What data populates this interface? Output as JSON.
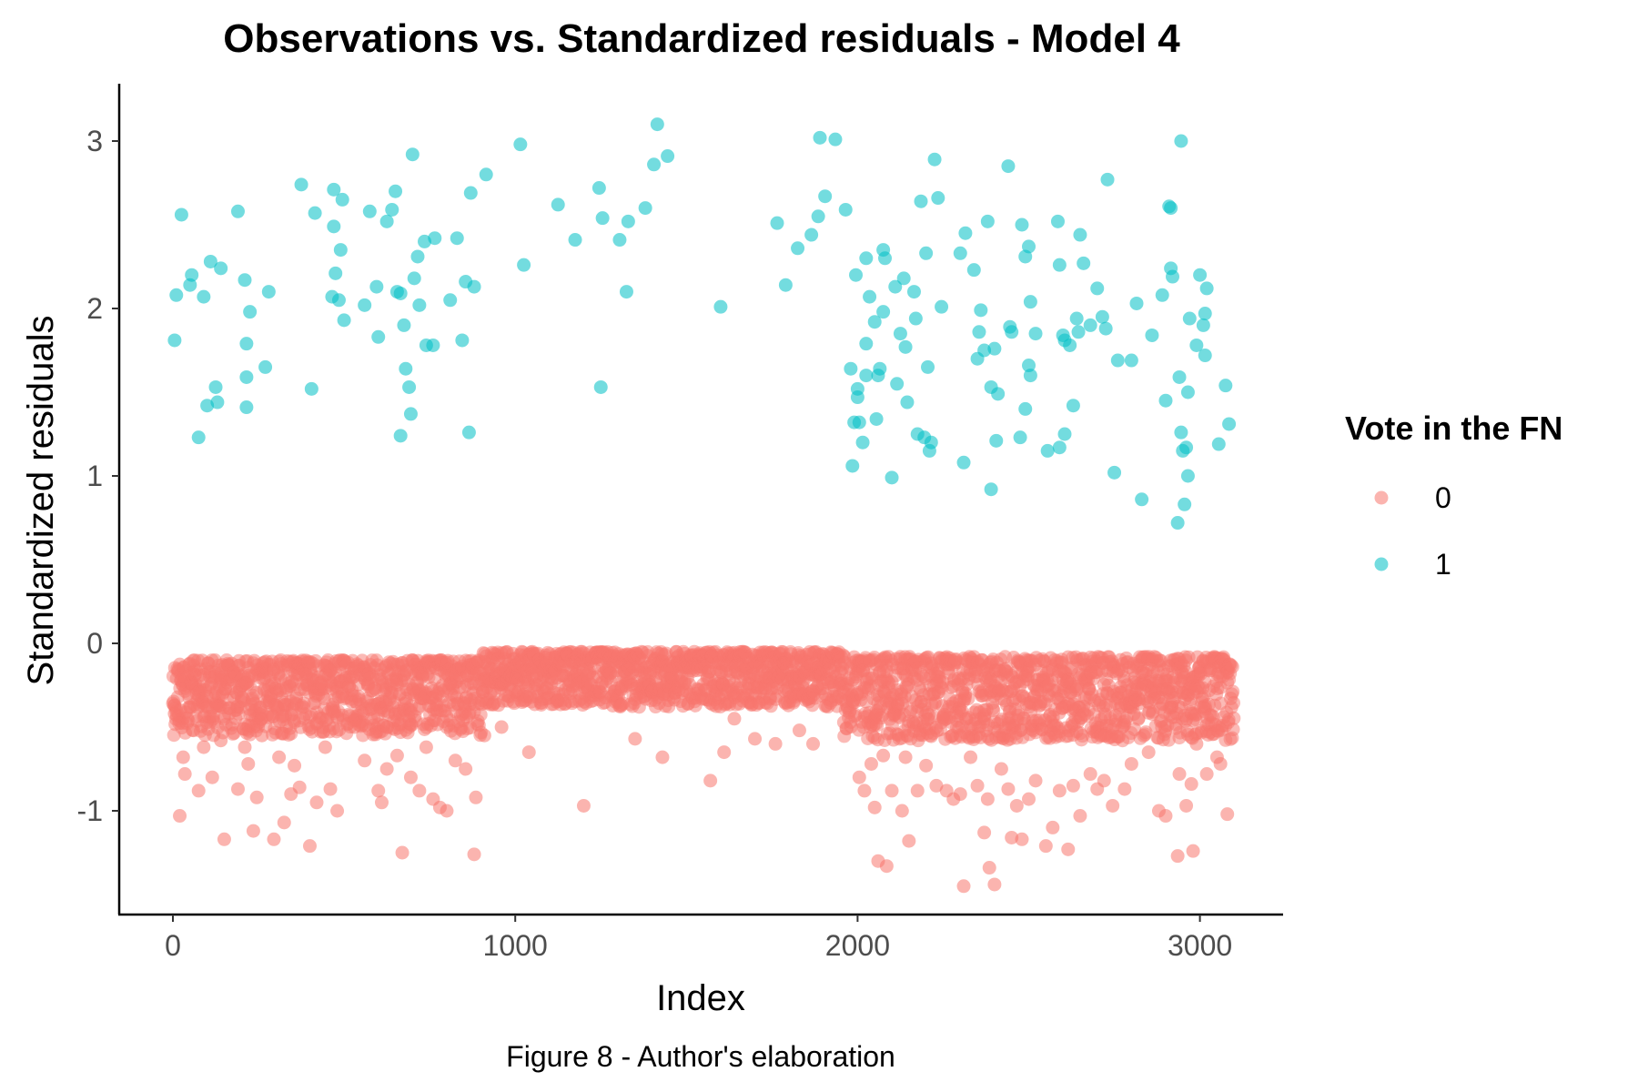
{
  "chart_data": {
    "type": "scatter",
    "title": "Observations vs. Standardized residuals - Model 4",
    "xlabel": "Index",
    "ylabel": "Standardized residuals",
    "caption": "Figure 8 - Author's elaboration",
    "xlim": [
      -150,
      3250
    ],
    "ylim": [
      -1.67,
      3.33
    ],
    "xticks": [
      0,
      1000,
      2000,
      3000
    ],
    "xtick_labels": [
      "0",
      "1000",
      "2000",
      "3000"
    ],
    "yticks": [
      -1,
      0,
      1,
      2,
      3
    ],
    "ytick_labels": [
      "-1",
      "0",
      "1",
      "2",
      "3"
    ],
    "grid": false,
    "legend": {
      "title": "Vote in the FN",
      "position": "right",
      "entries": [
        "0",
        "1"
      ]
    },
    "colors": {
      "0": "#F8766D",
      "1": "#00BFC4"
    },
    "n_observations": 3100,
    "series": [
      {
        "name": "1",
        "points": [
          [
            5,
            1.81
          ],
          [
            10,
            2.08
          ],
          [
            25,
            2.56
          ],
          [
            50,
            2.14
          ],
          [
            55,
            2.2
          ],
          [
            75,
            1.23
          ],
          [
            90,
            2.07
          ],
          [
            100,
            1.42
          ],
          [
            110,
            2.28
          ],
          [
            125,
            1.53
          ],
          [
            130,
            1.44
          ],
          [
            140,
            2.24
          ],
          [
            190,
            2.58
          ],
          [
            210,
            2.17
          ],
          [
            215,
            1.79
          ],
          [
            215,
            1.59
          ],
          [
            215,
            1.41
          ],
          [
            225,
            1.98
          ],
          [
            270,
            1.65
          ],
          [
            280,
            2.1
          ],
          [
            375,
            2.74
          ],
          [
            405,
            1.52
          ],
          [
            415,
            2.57
          ],
          [
            465,
            2.07
          ],
          [
            470,
            2.71
          ],
          [
            470,
            2.49
          ],
          [
            475,
            2.21
          ],
          [
            485,
            2.05
          ],
          [
            490,
            2.35
          ],
          [
            495,
            2.65
          ],
          [
            500,
            1.93
          ],
          [
            560,
            2.02
          ],
          [
            575,
            2.58
          ],
          [
            595,
            2.13
          ],
          [
            600,
            1.83
          ],
          [
            625,
            2.52
          ],
          [
            640,
            2.59
          ],
          [
            650,
            2.7
          ],
          [
            655,
            2.1
          ],
          [
            665,
            2.09
          ],
          [
            665,
            1.24
          ],
          [
            675,
            1.9
          ],
          [
            680,
            1.64
          ],
          [
            690,
            1.53
          ],
          [
            695,
            1.37
          ],
          [
            700,
            2.92
          ],
          [
            705,
            2.18
          ],
          [
            720,
            2.02
          ],
          [
            715,
            2.31
          ],
          [
            735,
            2.4
          ],
          [
            740,
            1.78
          ],
          [
            760,
            1.78
          ],
          [
            765,
            2.42
          ],
          [
            810,
            2.05
          ],
          [
            830,
            2.42
          ],
          [
            845,
            1.81
          ],
          [
            855,
            2.16
          ],
          [
            865,
            1.26
          ],
          [
            870,
            2.69
          ],
          [
            880,
            2.13
          ],
          [
            915,
            2.8
          ],
          [
            1015,
            2.98
          ],
          [
            1025,
            2.26
          ],
          [
            1125,
            2.62
          ],
          [
            1175,
            2.41
          ],
          [
            1245,
            2.72
          ],
          [
            1250,
            1.53
          ],
          [
            1255,
            2.54
          ],
          [
            1305,
            2.41
          ],
          [
            1325,
            2.1
          ],
          [
            1330,
            2.52
          ],
          [
            1380,
            2.6
          ],
          [
            1405,
            2.86
          ],
          [
            1415,
            3.1
          ],
          [
            1445,
            2.91
          ],
          [
            1600,
            2.01
          ],
          [
            1765,
            2.51
          ],
          [
            1790,
            2.14
          ],
          [
            1825,
            2.36
          ],
          [
            1865,
            2.44
          ],
          [
            1890,
            3.02
          ],
          [
            1885,
            2.55
          ],
          [
            1905,
            2.67
          ],
          [
            1935,
            3.01
          ],
          [
            1965,
            2.59
          ],
          [
            1980,
            1.64
          ],
          [
            1985,
            1.06
          ],
          [
            1990,
            1.32
          ],
          [
            1995,
            2.2
          ],
          [
            2000,
            1.52
          ],
          [
            2005,
            1.32
          ],
          [
            2000,
            1.47
          ],
          [
            2015,
            1.2
          ],
          [
            2025,
            2.3
          ],
          [
            2025,
            1.79
          ],
          [
            2025,
            1.6
          ],
          [
            2035,
            2.07
          ],
          [
            2050,
            1.92
          ],
          [
            2055,
            1.34
          ],
          [
            2060,
            1.6
          ],
          [
            2065,
            1.64
          ],
          [
            2075,
            2.35
          ],
          [
            2075,
            1.98
          ],
          [
            2080,
            2.3
          ],
          [
            2100,
            0.99
          ],
          [
            2110,
            2.13
          ],
          [
            2115,
            1.55
          ],
          [
            2125,
            1.85
          ],
          [
            2135,
            2.18
          ],
          [
            2140,
            1.77
          ],
          [
            2145,
            1.44
          ],
          [
            2165,
            2.1
          ],
          [
            2170,
            1.94
          ],
          [
            2175,
            1.25
          ],
          [
            2185,
            2.64
          ],
          [
            2195,
            1.23
          ],
          [
            2200,
            2.33
          ],
          [
            2205,
            1.65
          ],
          [
            2210,
            1.15
          ],
          [
            2215,
            1.2
          ],
          [
            2225,
            2.89
          ],
          [
            2235,
            2.66
          ],
          [
            2245,
            2.01
          ],
          [
            2300,
            2.33
          ],
          [
            2310,
            1.08
          ],
          [
            2315,
            2.45
          ],
          [
            2340,
            2.23
          ],
          [
            2350,
            1.7
          ],
          [
            2355,
            1.86
          ],
          [
            2360,
            1.99
          ],
          [
            2370,
            1.75
          ],
          [
            2380,
            2.52
          ],
          [
            2390,
            0.92
          ],
          [
            2390,
            1.53
          ],
          [
            2400,
            1.76
          ],
          [
            2405,
            1.21
          ],
          [
            2410,
            1.49
          ],
          [
            2440,
            2.85
          ],
          [
            2445,
            1.89
          ],
          [
            2450,
            1.86
          ],
          [
            2475,
            1.23
          ],
          [
            2480,
            2.5
          ],
          [
            2490,
            1.4
          ],
          [
            2490,
            2.31
          ],
          [
            2500,
            2.37
          ],
          [
            2500,
            1.66
          ],
          [
            2505,
            1.6
          ],
          [
            2505,
            2.04
          ],
          [
            2520,
            1.85
          ],
          [
            2555,
            1.15
          ],
          [
            2585,
            2.52
          ],
          [
            2590,
            2.26
          ],
          [
            2590,
            1.17
          ],
          [
            2600,
            1.84
          ],
          [
            2605,
            1.81
          ],
          [
            2605,
            1.25
          ],
          [
            2620,
            1.78
          ],
          [
            2630,
            1.42
          ],
          [
            2640,
            1.94
          ],
          [
            2645,
            1.86
          ],
          [
            2650,
            2.44
          ],
          [
            2660,
            2.27
          ],
          [
            2680,
            1.9
          ],
          [
            2700,
            2.12
          ],
          [
            2715,
            1.95
          ],
          [
            2725,
            1.88
          ],
          [
            2730,
            2.77
          ],
          [
            2750,
            1.02
          ],
          [
            2760,
            1.69
          ],
          [
            2800,
            1.69
          ],
          [
            2815,
            2.03
          ],
          [
            2830,
            0.86
          ],
          [
            2860,
            1.84
          ],
          [
            2890,
            2.08
          ],
          [
            2900,
            1.45
          ],
          [
            2910,
            2.61
          ],
          [
            2915,
            2.6
          ],
          [
            2915,
            2.24
          ],
          [
            2920,
            2.19
          ],
          [
            2935,
            0.72
          ],
          [
            2940,
            1.59
          ],
          [
            2945,
            1.26
          ],
          [
            2950,
            1.15
          ],
          [
            2955,
            0.83
          ],
          [
            2960,
            1.17
          ],
          [
            2965,
            1.5
          ],
          [
            2965,
            1.0
          ],
          [
            2970,
            1.94
          ],
          [
            2990,
            1.78
          ],
          [
            3000,
            2.2
          ],
          [
            3010,
            1.9
          ],
          [
            3015,
            1.97
          ],
          [
            3015,
            1.72
          ],
          [
            3020,
            2.12
          ],
          [
            3055,
            1.19
          ],
          [
            3075,
            1.54
          ],
          [
            3085,
            1.31
          ],
          [
            2945,
            3.0
          ]
        ]
      },
      {
        "name": "0",
        "extremes": [
          [
            5,
            -0.42
          ],
          [
            20,
            -1.03
          ],
          [
            30,
            -0.68
          ],
          [
            35,
            -0.78
          ],
          [
            60,
            -0.52
          ],
          [
            75,
            -0.88
          ],
          [
            90,
            -0.62
          ],
          [
            115,
            -0.8
          ],
          [
            140,
            -0.58
          ],
          [
            150,
            -1.17
          ],
          [
            190,
            -0.87
          ],
          [
            210,
            -0.62
          ],
          [
            220,
            -0.72
          ],
          [
            235,
            -1.12
          ],
          [
            245,
            -0.92
          ],
          [
            260,
            -0.55
          ],
          [
            295,
            -1.17
          ],
          [
            310,
            -0.68
          ],
          [
            325,
            -1.07
          ],
          [
            345,
            -0.9
          ],
          [
            355,
            -0.73
          ],
          [
            370,
            -0.86
          ],
          [
            400,
            -1.21
          ],
          [
            420,
            -0.95
          ],
          [
            445,
            -0.62
          ],
          [
            460,
            -0.87
          ],
          [
            480,
            -1.0
          ],
          [
            530,
            -0.5
          ],
          [
            560,
            -0.7
          ],
          [
            600,
            -0.88
          ],
          [
            610,
            -0.95
          ],
          [
            625,
            -0.75
          ],
          [
            655,
            -0.67
          ],
          [
            670,
            -1.25
          ],
          [
            695,
            -0.8
          ],
          [
            720,
            -0.88
          ],
          [
            740,
            -0.62
          ],
          [
            760,
            -0.93
          ],
          [
            780,
            -0.98
          ],
          [
            800,
            -1.0
          ],
          [
            825,
            -0.7
          ],
          [
            855,
            -0.75
          ],
          [
            880,
            -1.26
          ],
          [
            885,
            -0.92
          ],
          [
            910,
            -0.55
          ],
          [
            960,
            -0.5
          ],
          [
            1040,
            -0.65
          ],
          [
            1200,
            -0.97
          ],
          [
            1350,
            -0.57
          ],
          [
            1430,
            -0.68
          ],
          [
            1570,
            -0.82
          ],
          [
            1610,
            -0.65
          ],
          [
            1640,
            -0.45
          ],
          [
            1700,
            -0.57
          ],
          [
            1760,
            -0.6
          ],
          [
            1830,
            -0.52
          ],
          [
            1870,
            -0.6
          ],
          [
            2005,
            -0.8
          ],
          [
            2020,
            -0.88
          ],
          [
            2040,
            -0.72
          ],
          [
            2050,
            -0.98
          ],
          [
            2060,
            -1.3
          ],
          [
            2075,
            -0.67
          ],
          [
            2085,
            -1.33
          ],
          [
            2100,
            -0.88
          ],
          [
            2130,
            -1.0
          ],
          [
            2140,
            -0.68
          ],
          [
            2150,
            -1.18
          ],
          [
            2175,
            -0.88
          ],
          [
            2200,
            -0.73
          ],
          [
            2230,
            -0.85
          ],
          [
            2260,
            -0.88
          ],
          [
            2280,
            -0.93
          ],
          [
            2300,
            -0.9
          ],
          [
            2310,
            -1.45
          ],
          [
            2330,
            -0.68
          ],
          [
            2350,
            -0.85
          ],
          [
            2370,
            -1.13
          ],
          [
            2380,
            -0.93
          ],
          [
            2385,
            -1.34
          ],
          [
            2400,
            -1.44
          ],
          [
            2420,
            -0.75
          ],
          [
            2440,
            -0.87
          ],
          [
            2450,
            -1.16
          ],
          [
            2465,
            -0.97
          ],
          [
            2480,
            -1.17
          ],
          [
            2500,
            -0.93
          ],
          [
            2520,
            -0.82
          ],
          [
            2550,
            -1.21
          ],
          [
            2570,
            -1.1
          ],
          [
            2590,
            -0.88
          ],
          [
            2615,
            -1.23
          ],
          [
            2630,
            -0.85
          ],
          [
            2650,
            -1.03
          ],
          [
            2680,
            -0.78
          ],
          [
            2700,
            -0.87
          ],
          [
            2720,
            -0.82
          ],
          [
            2745,
            -0.97
          ],
          [
            2780,
            -0.87
          ],
          [
            2800,
            -0.72
          ],
          [
            2850,
            -0.65
          ],
          [
            2880,
            -1.0
          ],
          [
            2900,
            -1.03
          ],
          [
            2935,
            -1.27
          ],
          [
            2940,
            -0.78
          ],
          [
            2960,
            -0.97
          ],
          [
            2975,
            -0.84
          ],
          [
            2980,
            -1.24
          ],
          [
            2990,
            -0.6
          ],
          [
            3020,
            -0.78
          ],
          [
            3050,
            -0.68
          ],
          [
            3060,
            -0.72
          ],
          [
            3080,
            -1.02
          ]
        ],
        "band_description_min": -0.05,
        "band_description_max": -0.55
      }
    ]
  }
}
